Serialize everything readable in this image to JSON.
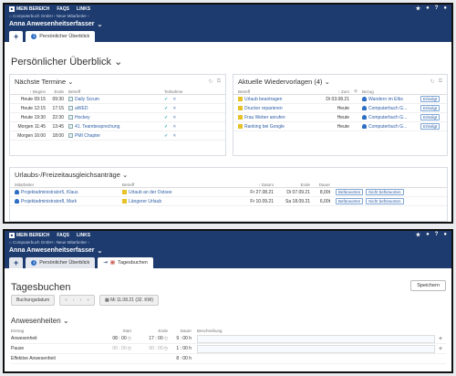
{
  "topbar": {
    "brand": "MEIN BEREICH",
    "faqs": "FAQS",
    "links": "LINKS",
    "star": "★",
    "bell": "●",
    "help": "?",
    "user": "●"
  },
  "breadcrumb": "⌂ Computerbuch GmbH › Neue Mitarbeiter ›",
  "user_name": "Anna Anwesenheitserfasser",
  "tabs": {
    "plus": "+",
    "overview": "Persönlicher Überblick",
    "bookings": "Tagesbuchen"
  },
  "overview": {
    "title": "Persönlicher Überblick",
    "termine": {
      "title": "Nächste Termine",
      "headers": [
        "Beginn",
        "Ende",
        "Betreff",
        "Teilnahme"
      ],
      "rows": [
        {
          "day": "Heute",
          "start": "09:15",
          "end": "09:30",
          "subject": "Daily Scrum"
        },
        {
          "day": "Heute",
          "start": "12:15",
          "end": "17:15",
          "subject": "aWED"
        },
        {
          "day": "Heute",
          "start": "19:30",
          "end": "22:30",
          "subject": "Hockey"
        },
        {
          "day": "Morgen",
          "start": "11:45",
          "end": "13:45",
          "subject": "41. Teambesprechung"
        },
        {
          "day": "Morgen",
          "start": "16:00",
          "end": "18:00",
          "subject": "PMI Chapter"
        }
      ]
    },
    "wiedervorlagen": {
      "title": "Aktuelle Wiedervorlagen (4)",
      "headers": [
        "Betreff",
        "Zum",
        "Bezug"
      ],
      "rows": [
        {
          "subject": "Urlaub beantragen",
          "date": "Di 03.08.21",
          "ref": "Wandern im Elbs",
          "action": "Erledigt"
        },
        {
          "subject": "Drucker reparieren",
          "date": "Heute",
          "ref": "Computerbuch G...",
          "action": "Erledigt"
        },
        {
          "subject": "Frau Weber anrufen",
          "date": "Heute",
          "ref": "Computerbuch G...",
          "action": "Erledigt"
        },
        {
          "subject": "Ranking bei Google",
          "date": "Heute",
          "ref": "Computerbuch G...",
          "action": "Erledigt"
        }
      ]
    },
    "urlaub": {
      "title": "Urlaubs-/Freizeitausgleichsanträge",
      "headers": [
        "Mitarbeiter",
        "Betreff",
        "Datum",
        "Ende",
        "Dauer"
      ],
      "rows": [
        {
          "employee": "Projektadministrator5, Klaus",
          "subject": "Urlaub an der Ostsee",
          "start": "Fr 27.08.21",
          "end": "Di 07.09.21",
          "duration": "8,00t",
          "approve": "Befürworten",
          "reject": "Nicht befürworten"
        },
        {
          "employee": "Projektadministrator8, Mark",
          "subject": "Längerer Urlaub",
          "start": "Fr 10.09.21",
          "end": "Sa 18.09.21",
          "duration": "6,00t",
          "approve": "Befürworten",
          "reject": "Nicht befürworten"
        }
      ]
    }
  },
  "tagesbuchen": {
    "title": "Tagesbuchen",
    "save": "Speichern",
    "date_label": "Buchungsdatum",
    "nav": [
      "«",
      "‹",
      "›",
      "»"
    ],
    "date_value": "Mi 11.08.21 (32. KW)",
    "section": "Anwesenheiten",
    "headers": [
      "Eintrag",
      "Start",
      "Ende",
      "Dauer",
      "Beschreibung"
    ],
    "rows": [
      {
        "label": "Anwesenheit",
        "start": "08 : 00",
        "end": "17 : 00",
        "duration": "9 : 00 h"
      },
      {
        "label": "Pause",
        "start": "00 : 00",
        "end": "00 : 00",
        "duration": "1 : 00 h"
      },
      {
        "label": "Effektive Anwesenheit",
        "start": "",
        "end": "",
        "duration": "8 : 00 h"
      }
    ]
  }
}
